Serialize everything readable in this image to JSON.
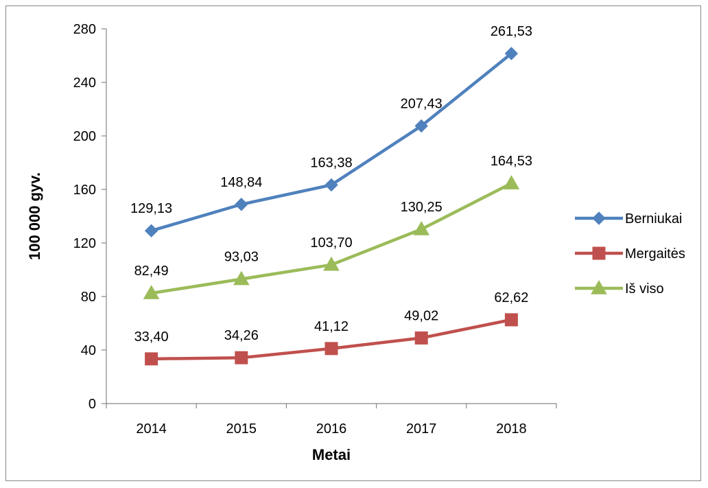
{
  "chart_data": {
    "type": "line",
    "categories": [
      "2014",
      "2015",
      "2016",
      "2017",
      "2018"
    ],
    "series": [
      {
        "name": "Berniukai",
        "values": [
          129.13,
          148.84,
          163.38,
          207.43,
          261.53
        ],
        "labels": [
          "129,13",
          "148,84",
          "163,38",
          "207,43",
          "261,53"
        ],
        "color": "#4f81bd",
        "marker": "diamond"
      },
      {
        "name": "Mergaitės",
        "values": [
          33.4,
          34.26,
          41.12,
          49.02,
          62.62
        ],
        "labels": [
          "33,40",
          "34,26",
          "41,12",
          "49,02",
          "62,62"
        ],
        "color": "#c0504d",
        "marker": "square"
      },
      {
        "name": "Iš viso",
        "values": [
          82.49,
          93.03,
          103.7,
          130.25,
          164.53
        ],
        "labels": [
          "82,49",
          "93,03",
          "103,70",
          "130,25",
          "164,53"
        ],
        "color": "#9bbb59",
        "marker": "triangle"
      }
    ],
    "xlabel": "Metai",
    "ylabel": "100 000 gyv.",
    "ylim": [
      0,
      280
    ],
    "yticks": [
      "0",
      "40",
      "80",
      "120",
      "160",
      "200",
      "240",
      "280"
    ],
    "grid": false,
    "legend_position": "right"
  }
}
